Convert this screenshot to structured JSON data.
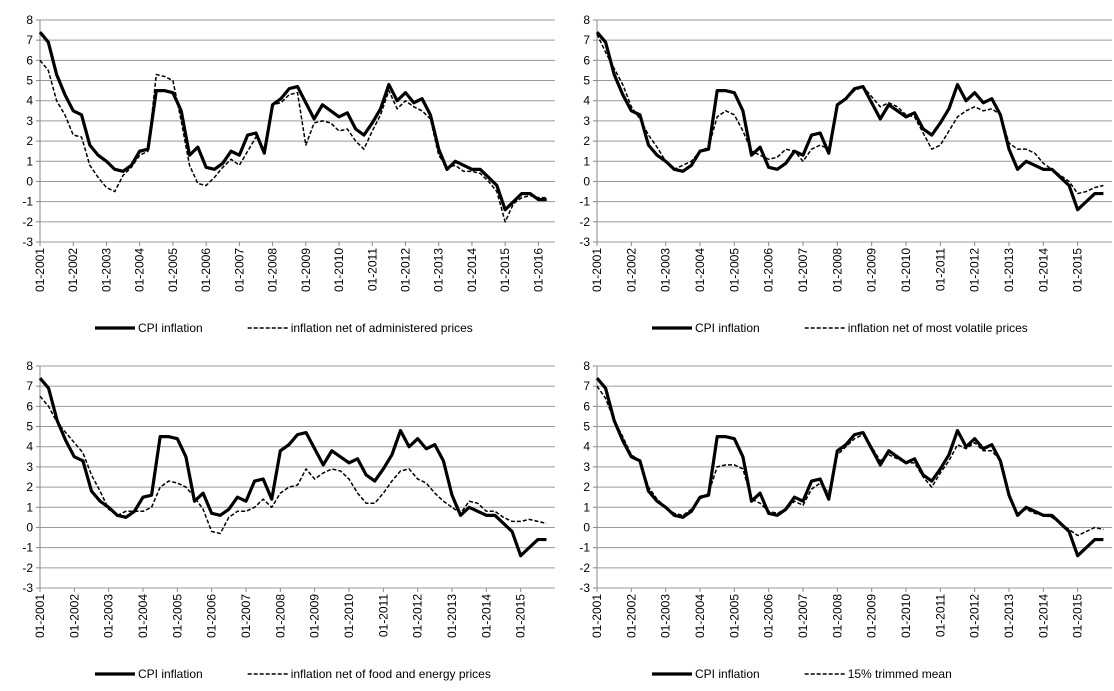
{
  "chart_data": [
    {
      "type": "line",
      "x": [
        "01-2001",
        null,
        null,
        null,
        "01-2002",
        null,
        null,
        null,
        "01-2003",
        null,
        null,
        null,
        "01-2004",
        null,
        null,
        null,
        "01-2005",
        null,
        null,
        null,
        "01-2006",
        null,
        null,
        null,
        "01-2007",
        null,
        null,
        null,
        "01-2008",
        null,
        null,
        null,
        "01-2009",
        null,
        null,
        null,
        "01-2010",
        null,
        null,
        null,
        "01-2011",
        null,
        null,
        null,
        "01-2012",
        null,
        null,
        null,
        "01-2013",
        null,
        null,
        null,
        "01-2014",
        null,
        null,
        null,
        "01-2015",
        null,
        null,
        null,
        "01-2016",
        null
      ],
      "series": [
        {
          "name": "CPI inflation",
          "color": "#000000",
          "style": "solid",
          "values": [
            7.4,
            6.9,
            5.3,
            4.3,
            3.5,
            3.3,
            1.8,
            1.3,
            1.0,
            0.6,
            0.5,
            0.8,
            1.5,
            1.6,
            4.5,
            4.5,
            4.4,
            3.5,
            1.3,
            1.7,
            0.7,
            0.6,
            0.9,
            1.5,
            1.3,
            2.3,
            2.4,
            1.4,
            3.8,
            4.1,
            4.6,
            4.7,
            3.9,
            3.1,
            3.8,
            3.5,
            3.2,
            3.4,
            2.6,
            2.3,
            2.9,
            3.6,
            4.8,
            4.0,
            4.4,
            3.9,
            4.1,
            3.3,
            1.6,
            0.6,
            1.0,
            0.8,
            0.6,
            0.6,
            0.2,
            -0.2,
            -1.4,
            -1.0,
            -0.6,
            -0.6,
            -0.9,
            -0.9
          ]
        },
        {
          "name": "inflation net of administered prices",
          "color": "#000000",
          "style": "dashed",
          "values": [
            6.0,
            5.5,
            4.0,
            3.3,
            2.3,
            2.2,
            0.8,
            0.2,
            -0.3,
            -0.5,
            0.3,
            0.7,
            1.3,
            1.5,
            5.3,
            5.2,
            5.0,
            3.0,
            0.8,
            -0.1,
            -0.2,
            0.2,
            0.7,
            1.1,
            0.8,
            1.5,
            2.2,
            1.6,
            3.8,
            3.9,
            4.3,
            4.4,
            1.8,
            2.9,
            3.0,
            2.9,
            2.5,
            2.6,
            2.0,
            1.6,
            2.5,
            3.3,
            4.5,
            3.6,
            4.0,
            3.7,
            3.5,
            3.1,
            1.3,
            0.7,
            0.8,
            0.5,
            0.5,
            0.4,
            0.0,
            -0.5,
            -2.0,
            -1.1,
            -0.8,
            -0.7,
            -0.8,
            -0.8
          ]
        }
      ],
      "ylim": [
        -3,
        8
      ],
      "yticks": [
        -3,
        -2,
        -1,
        0,
        1,
        2,
        3,
        4,
        5,
        6,
        7,
        8
      ],
      "grid": true,
      "legend": "bottom"
    },
    {
      "type": "line",
      "x": [
        "01-2001",
        null,
        null,
        null,
        "01-2002",
        null,
        null,
        null,
        "01-2003",
        null,
        null,
        null,
        "01-2004",
        null,
        null,
        null,
        "01-2005",
        null,
        null,
        null,
        "01-2006",
        null,
        null,
        null,
        "01-2007",
        null,
        null,
        null,
        "01-2008",
        null,
        null,
        null,
        "01-2009",
        null,
        null,
        null,
        "01-2010",
        null,
        null,
        null,
        "01-2011",
        null,
        null,
        null,
        "01-2012",
        null,
        null,
        null,
        "01-2013",
        null,
        null,
        null,
        "01-2014",
        null,
        null,
        null,
        "01-2015",
        null,
        null,
        null
      ],
      "series": [
        {
          "name": "CPI inflation",
          "color": "#000000",
          "style": "solid",
          "values": [
            7.4,
            6.9,
            5.3,
            4.3,
            3.5,
            3.3,
            1.8,
            1.3,
            1.0,
            0.6,
            0.5,
            0.8,
            1.5,
            1.6,
            4.5,
            4.5,
            4.4,
            3.5,
            1.3,
            1.7,
            0.7,
            0.6,
            0.9,
            1.5,
            1.3,
            2.3,
            2.4,
            1.4,
            3.8,
            4.1,
            4.6,
            4.7,
            3.9,
            3.1,
            3.8,
            3.5,
            3.2,
            3.4,
            2.6,
            2.3,
            2.9,
            3.6,
            4.8,
            4.0,
            4.4,
            3.9,
            4.1,
            3.3,
            1.6,
            0.6,
            1.0,
            0.8,
            0.6,
            0.6,
            0.2,
            -0.2,
            -1.4,
            -1.0,
            -0.6,
            -0.6
          ]
        },
        {
          "name": "inflation net of most volatile prices",
          "color": "#000000",
          "style": "dashed",
          "values": [
            7.3,
            6.4,
            5.6,
            4.8,
            3.7,
            3.1,
            2.3,
            1.7,
            1.0,
            0.6,
            0.8,
            1.0,
            1.5,
            1.7,
            3.2,
            3.5,
            3.3,
            2.5,
            1.5,
            1.3,
            1.1,
            1.2,
            1.6,
            1.5,
            1.0,
            1.6,
            1.8,
            1.6,
            3.8,
            4.1,
            4.5,
            4.7,
            4.2,
            3.7,
            3.9,
            3.7,
            3.3,
            3.2,
            2.4,
            1.6,
            1.8,
            2.5,
            3.2,
            3.5,
            3.7,
            3.5,
            3.6,
            3.3,
            1.9,
            1.6,
            1.6,
            1.4,
            0.9,
            0.6,
            0.3,
            0.0,
            -0.6,
            -0.5,
            -0.3,
            -0.2
          ]
        }
      ],
      "ylim": [
        -3,
        8
      ],
      "yticks": [
        -3,
        -2,
        -1,
        0,
        1,
        2,
        3,
        4,
        5,
        6,
        7,
        8
      ],
      "grid": true,
      "legend": "bottom"
    },
    {
      "type": "line",
      "x": [
        "01-2001",
        null,
        null,
        null,
        "01-2002",
        null,
        null,
        null,
        "01-2003",
        null,
        null,
        null,
        "01-2004",
        null,
        null,
        null,
        "01-2005",
        null,
        null,
        null,
        "01-2006",
        null,
        null,
        null,
        "01-2007",
        null,
        null,
        null,
        "01-2008",
        null,
        null,
        null,
        "01-2009",
        null,
        null,
        null,
        "01-2010",
        null,
        null,
        null,
        "01-2011",
        null,
        null,
        null,
        "01-2012",
        null,
        null,
        null,
        "01-2013",
        null,
        null,
        null,
        "01-2014",
        null,
        null,
        null,
        "01-2015",
        null,
        null,
        null
      ],
      "series": [
        {
          "name": "CPI inflation",
          "color": "#000000",
          "style": "solid",
          "values": [
            7.4,
            6.9,
            5.3,
            4.3,
            3.5,
            3.3,
            1.8,
            1.3,
            1.0,
            0.6,
            0.5,
            0.8,
            1.5,
            1.6,
            4.5,
            4.5,
            4.4,
            3.5,
            1.3,
            1.7,
            0.7,
            0.6,
            0.9,
            1.5,
            1.3,
            2.3,
            2.4,
            1.4,
            3.8,
            4.1,
            4.6,
            4.7,
            3.9,
            3.1,
            3.8,
            3.5,
            3.2,
            3.4,
            2.6,
            2.3,
            2.9,
            3.6,
            4.8,
            4.0,
            4.4,
            3.9,
            4.1,
            3.3,
            1.6,
            0.6,
            1.0,
            0.8,
            0.6,
            0.6,
            0.2,
            -0.2,
            -1.4,
            -1.0,
            -0.6,
            -0.6
          ]
        },
        {
          "name": "inflation net of food and energy prices",
          "color": "#000000",
          "style": "dashed",
          "values": [
            6.5,
            6.0,
            5.2,
            4.7,
            4.2,
            3.7,
            2.6,
            1.8,
            0.9,
            0.6,
            0.8,
            0.8,
            0.8,
            1.0,
            2.0,
            2.3,
            2.2,
            2.0,
            1.5,
            0.9,
            -0.2,
            -0.3,
            0.5,
            0.8,
            0.8,
            1.0,
            1.4,
            1.0,
            1.7,
            2.0,
            2.1,
            2.9,
            2.4,
            2.7,
            2.9,
            2.8,
            2.4,
            1.7,
            1.2,
            1.2,
            1.7,
            2.3,
            2.8,
            2.9,
            2.4,
            2.2,
            1.7,
            1.3,
            1.0,
            0.7,
            1.3,
            1.2,
            0.8,
            0.8,
            0.5,
            0.3,
            0.3,
            0.4,
            0.3,
            0.2
          ]
        }
      ],
      "ylim": [
        -3,
        8
      ],
      "yticks": [
        -3,
        -2,
        -1,
        0,
        1,
        2,
        3,
        4,
        5,
        6,
        7,
        8
      ],
      "grid": true,
      "legend": "bottom"
    },
    {
      "type": "line",
      "x": [
        "01-2001",
        null,
        null,
        null,
        "01-2002",
        null,
        null,
        null,
        "01-2003",
        null,
        null,
        null,
        "01-2004",
        null,
        null,
        null,
        "01-2005",
        null,
        null,
        null,
        "01-2006",
        null,
        null,
        null,
        "01-2007",
        null,
        null,
        null,
        "01-2008",
        null,
        null,
        null,
        "01-2009",
        null,
        null,
        null,
        "01-2010",
        null,
        null,
        null,
        "01-2011",
        null,
        null,
        null,
        "01-2012",
        null,
        null,
        null,
        "01-2013",
        null,
        null,
        null,
        "01-2014",
        null,
        null,
        null,
        "01-2015",
        null,
        null,
        null
      ],
      "series": [
        {
          "name": "CPI inflation",
          "color": "#000000",
          "style": "solid",
          "values": [
            7.4,
            6.9,
            5.3,
            4.3,
            3.5,
            3.3,
            1.8,
            1.3,
            1.0,
            0.6,
            0.5,
            0.8,
            1.5,
            1.6,
            4.5,
            4.5,
            4.4,
            3.5,
            1.3,
            1.7,
            0.7,
            0.6,
            0.9,
            1.5,
            1.3,
            2.3,
            2.4,
            1.4,
            3.8,
            4.1,
            4.6,
            4.7,
            3.9,
            3.1,
            3.8,
            3.5,
            3.2,
            3.4,
            2.6,
            2.3,
            2.9,
            3.6,
            4.8,
            4.0,
            4.4,
            3.9,
            4.1,
            3.3,
            1.6,
            0.6,
            1.0,
            0.8,
            0.6,
            0.6,
            0.2,
            -0.2,
            -1.4,
            -1.0,
            -0.6,
            -0.6
          ]
        },
        {
          "name": "15% trimmed mean",
          "color": "#000000",
          "style": "dashed",
          "values": [
            7.0,
            6.4,
            5.3,
            4.5,
            3.6,
            3.3,
            2.0,
            1.4,
            1.0,
            0.7,
            0.6,
            0.9,
            1.4,
            1.7,
            3.0,
            3.1,
            3.1,
            2.9,
            1.4,
            1.2,
            0.8,
            0.7,
            0.9,
            1.3,
            1.1,
            1.9,
            2.2,
            1.7,
            3.6,
            4.0,
            4.4,
            4.6,
            4.0,
            3.3,
            3.6,
            3.4,
            3.2,
            3.2,
            2.5,
            2.0,
            2.7,
            3.3,
            4.1,
            3.9,
            4.2,
            3.8,
            3.8,
            3.3,
            1.5,
            0.7,
            0.9,
            0.7,
            0.6,
            0.5,
            0.2,
            -0.1,
            -0.4,
            -0.2,
            0.0,
            -0.1
          ]
        }
      ],
      "ylim": [
        -3,
        8
      ],
      "yticks": [
        -3,
        -2,
        -1,
        0,
        1,
        2,
        3,
        4,
        5,
        6,
        7,
        8
      ],
      "grid": true,
      "legend": "bottom"
    }
  ]
}
